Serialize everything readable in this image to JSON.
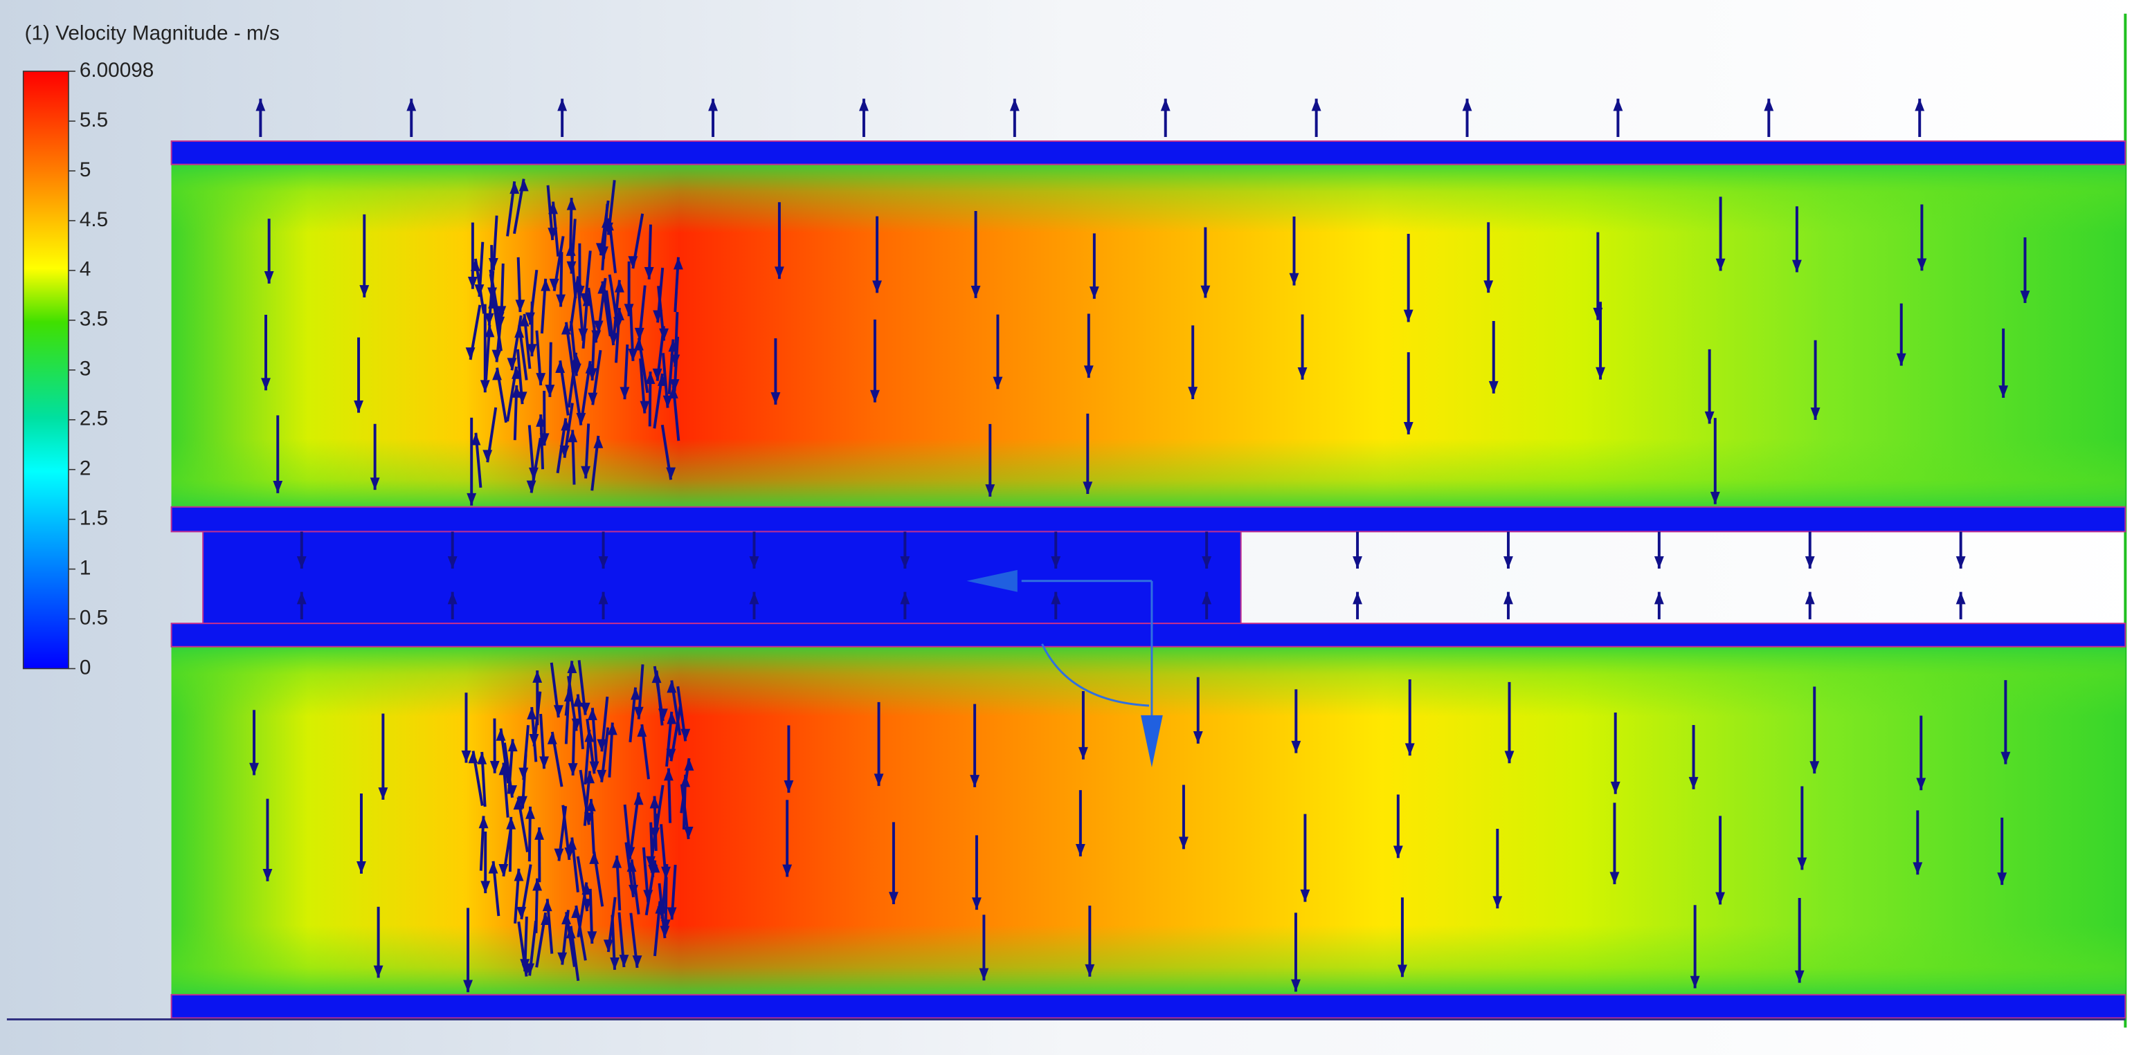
{
  "legend": {
    "title": "(1) Velocity Magnitude - m/s",
    "ticks": [
      6.00098,
      5.5,
      5,
      4.5,
      4,
      3.5,
      3,
      2.5,
      2,
      1.5,
      1,
      0.5,
      0
    ]
  }
}
